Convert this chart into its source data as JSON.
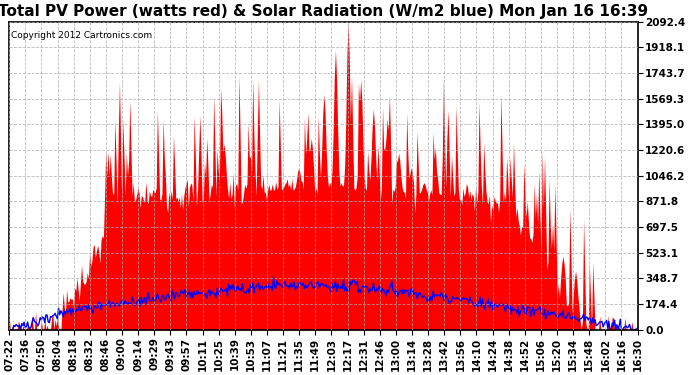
{
  "title": "Total PV Power (watts red) & Solar Radiation (W/m2 blue) Mon Jan 16 16:39",
  "copyright_text": "Copyright 2012 Cartronics.com",
  "y_ticks": [
    0.0,
    174.4,
    348.7,
    523.1,
    697.5,
    871.8,
    1046.2,
    1220.6,
    1395.0,
    1569.3,
    1743.7,
    1918.1,
    2092.4
  ],
  "y_max": 2092.4,
  "x_labels": [
    "07:22",
    "07:36",
    "07:50",
    "08:04",
    "08:18",
    "08:32",
    "08:46",
    "09:00",
    "09:14",
    "09:29",
    "09:43",
    "09:57",
    "10:11",
    "10:25",
    "10:39",
    "10:53",
    "11:07",
    "11:21",
    "11:35",
    "11:49",
    "12:03",
    "12:17",
    "12:31",
    "12:46",
    "13:00",
    "13:14",
    "13:28",
    "13:42",
    "13:56",
    "14:10",
    "14:24",
    "14:38",
    "14:52",
    "15:06",
    "15:20",
    "15:34",
    "15:48",
    "16:02",
    "16:16",
    "16:30"
  ],
  "bg_color": "#ffffff",
  "plot_bg_color": "#ffffff",
  "grid_color": "#aaaaaa",
  "red_color": "#ff0000",
  "blue_color": "#0000ff",
  "title_fontsize": 11,
  "tick_fontsize": 7.5,
  "n_points": 548
}
